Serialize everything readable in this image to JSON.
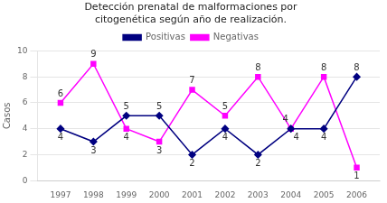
{
  "chart_data": {
    "type": "line",
    "title": "Detección prenatal de malformaciones por\ncitogenética según año de realización.",
    "ylabel": "Casos",
    "x": [
      1997,
      1998,
      1999,
      2000,
      2001,
      2002,
      2003,
      2004,
      2005,
      2006
    ],
    "series": [
      {
        "name": "Positivas",
        "color": "#000080",
        "marker": "diamond",
        "values": [
          4,
          3,
          5,
          5,
          2,
          4,
          2,
          4,
          4,
          8
        ]
      },
      {
        "name": "Negativas",
        "color": "#FF00FF",
        "marker": "square",
        "values": [
          6,
          9,
          4,
          3,
          7,
          5,
          8,
          4,
          8,
          1
        ]
      }
    ],
    "xlim": [
      1996.3,
      2006.7
    ],
    "xticks": [
      1997,
      1998,
      1999,
      2000,
      2001,
      2002,
      2003,
      2004,
      2005,
      2006
    ],
    "ylim": [
      0,
      10
    ],
    "yticks": [
      0,
      2,
      4,
      6,
      8,
      10
    ],
    "grid": true,
    "legend": "top",
    "data_labels": true
  }
}
